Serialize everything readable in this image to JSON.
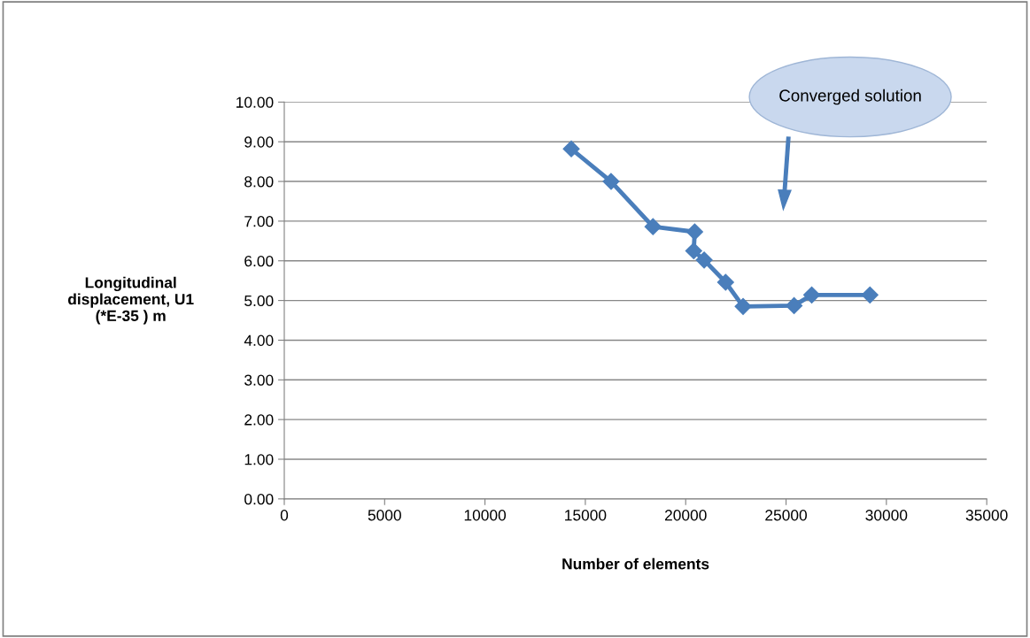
{
  "chart_data": {
    "type": "line",
    "xlabel": "Number of elements",
    "ylabel": "Longitudinal\ndisplacement, U1\n(*E-35 ) m",
    "x": [
      14300,
      16280,
      18370,
      20450,
      20400,
      20920,
      21990,
      22860,
      25400,
      26280,
      29180
    ],
    "series": [
      {
        "color": "#4a7ebb",
        "values": [
          8.82,
          8.0,
          6.86,
          6.73,
          6.25,
          6.02,
          5.46,
          4.85,
          4.87,
          5.14,
          5.14
        ]
      }
    ],
    "xlim": [
      0,
      35000
    ],
    "xticks": [
      0,
      5000,
      10000,
      15000,
      20000,
      25000,
      30000,
      35000
    ],
    "ylim": [
      0,
      10
    ],
    "yticks": [
      {
        "value": 0,
        "label": "0.00"
      },
      {
        "value": 1,
        "label": "1.00"
      },
      {
        "value": 2,
        "label": "2.00"
      },
      {
        "value": 3,
        "label": "3.00"
      },
      {
        "value": 4,
        "label": "4.00"
      },
      {
        "value": 5,
        "label": "5.00"
      },
      {
        "value": 6,
        "label": "6.00"
      },
      {
        "value": 7,
        "label": "7.00"
      },
      {
        "value": 8,
        "label": "8.00"
      },
      {
        "value": 9,
        "label": "9.00"
      },
      {
        "value": 10,
        "label": "10.00"
      }
    ],
    "grid": "y",
    "marker": "diamond",
    "line_style": "solid",
    "annotations": [
      "Converged solution"
    ]
  }
}
